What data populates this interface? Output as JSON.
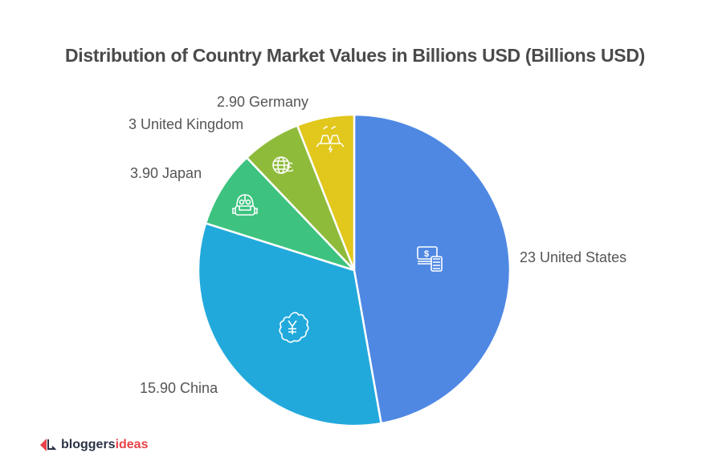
{
  "chart_data": {
    "type": "pie",
    "title": "Distribution of Country Market Values in Billions USD (Billions USD)",
    "categories": [
      "United States",
      "China",
      "Japan",
      "United Kingdom",
      "Germany"
    ],
    "values": [
      23,
      15.9,
      3.9,
      3,
      2.9
    ],
    "labels": [
      "23 United States",
      "15.90 China",
      "3.90 Japan",
      "3 United Kingdom",
      "2.90 Germany"
    ],
    "colors": [
      "#4f88e3",
      "#22a9dc",
      "#3dc37f",
      "#8fbb3b",
      "#e2c71c"
    ],
    "icons": [
      "money-calculator-icon",
      "yuan-badge-icon",
      "robot-icon",
      "globe-pound-icon",
      "factory-power-icon"
    ],
    "start_angle": "top, clockwise",
    "legend": "none (direct labels)"
  },
  "title": "Distribution of Country Market Values in Billions USD (Billions USD)",
  "labels": {
    "us": "23 United States",
    "china": "15.90 China",
    "japan": "3.90 Japan",
    "uk": "3 United Kingdom",
    "germany": "2.90 Germany"
  },
  "logo": {
    "part1": "bloggers",
    "part2": "ideas"
  }
}
